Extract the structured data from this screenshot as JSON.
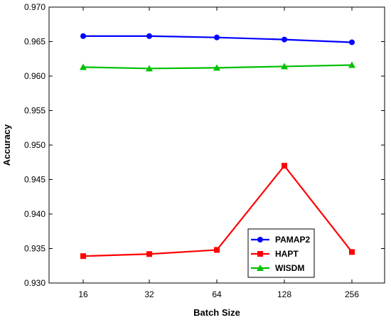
{
  "chart_data": {
    "type": "line",
    "title": "",
    "xlabel": "Batch Size",
    "ylabel": "Accuracy",
    "categories": [
      "16",
      "32",
      "64",
      "128",
      "256"
    ],
    "yticks": [
      "0.930",
      "0.935",
      "0.940",
      "0.945",
      "0.950",
      "0.955",
      "0.960",
      "0.965",
      "0.970"
    ],
    "ylim": [
      0.93,
      0.97
    ],
    "grid": false,
    "legend_position": "bottom-right",
    "series": [
      {
        "name": "PAMAP2",
        "color": "#0000ff",
        "marker": "circle",
        "values": [
          0.9658,
          0.9658,
          0.9656,
          0.9653,
          0.9649
        ]
      },
      {
        "name": "HAPT",
        "color": "#ff0000",
        "marker": "square",
        "values": [
          0.9339,
          0.9342,
          0.9348,
          0.947,
          0.9345
        ]
      },
      {
        "name": "WISDM",
        "color": "#00c000",
        "marker": "triangle",
        "values": [
          0.9613,
          0.9611,
          0.9612,
          0.9614,
          0.9616
        ]
      }
    ]
  }
}
